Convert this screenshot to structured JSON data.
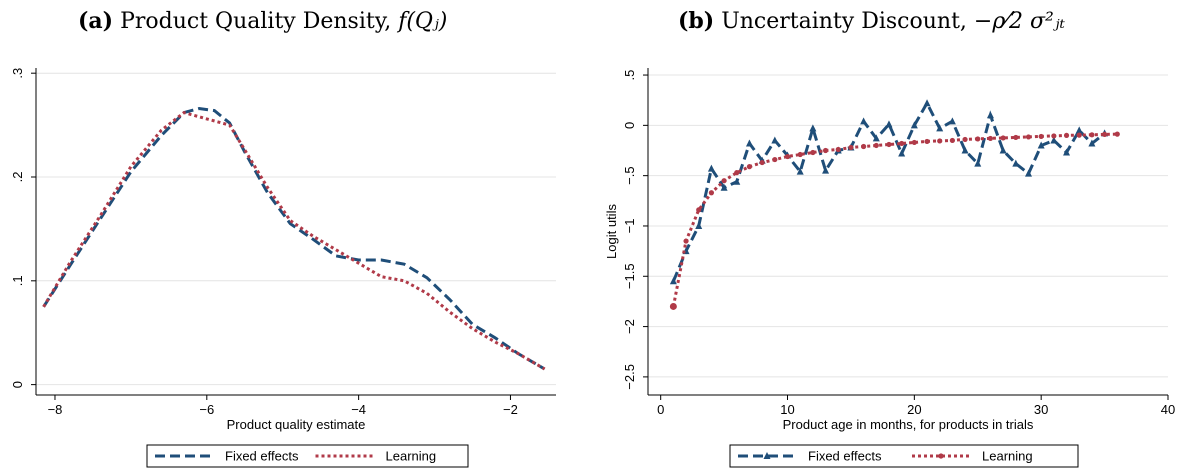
{
  "panels": [
    {
      "prefix": "(a)",
      "title": "Product Quality Density,",
      "math": "f(Qⱼ)"
    },
    {
      "prefix": "(b)",
      "title": "Uncertainty Discount,",
      "math": "−ρ⁄2 σ²ⱼₜ"
    }
  ],
  "colors": {
    "fixed": "#1f4e79",
    "learning": "#b03a48",
    "grid": "#e4e4e4"
  },
  "chart_data": [
    {
      "type": "line",
      "xlabel": "Product quality estimate",
      "ylabel": "",
      "xlim": [
        -8.25,
        -1.4
      ],
      "ylim": [
        -0.01,
        0.305
      ],
      "xticks": [
        -8,
        -6,
        -4,
        -2
      ],
      "xtick_labels": [
        "−8",
        "−6",
        "−4",
        "−2"
      ],
      "yticks": [
        0,
        0.1,
        0.2,
        0.3
      ],
      "ytick_labels": [
        "0",
        ".1",
        ".2",
        ".3"
      ],
      "grid": true,
      "legend": "bottom",
      "series": [
        {
          "name": "Fixed effects",
          "style": "dash",
          "x": [
            -8.15,
            -7.8,
            -7.4,
            -7.0,
            -6.6,
            -6.3,
            -6.1,
            -5.9,
            -5.7,
            -5.5,
            -5.2,
            -4.9,
            -4.6,
            -4.3,
            -4.0,
            -3.7,
            -3.4,
            -3.1,
            -2.8,
            -2.5,
            -2.2,
            -1.9,
            -1.55
          ],
          "y": [
            0.075,
            0.115,
            0.16,
            0.205,
            0.24,
            0.262,
            0.266,
            0.264,
            0.252,
            0.224,
            0.185,
            0.155,
            0.14,
            0.124,
            0.12,
            0.12,
            0.116,
            0.103,
            0.082,
            0.058,
            0.045,
            0.03,
            0.015
          ]
        },
        {
          "name": "Learning",
          "style": "dot",
          "x": [
            -8.15,
            -7.8,
            -7.4,
            -7.0,
            -6.6,
            -6.3,
            -6.0,
            -5.7,
            -5.5,
            -5.2,
            -4.9,
            -4.6,
            -4.3,
            -4.0,
            -3.7,
            -3.4,
            -3.1,
            -2.8,
            -2.5,
            -2.2,
            -1.9,
            -1.55
          ],
          "y": [
            0.075,
            0.118,
            0.163,
            0.21,
            0.245,
            0.262,
            0.256,
            0.25,
            0.226,
            0.19,
            0.158,
            0.143,
            0.13,
            0.117,
            0.104,
            0.1,
            0.088,
            0.07,
            0.054,
            0.041,
            0.03,
            0.015
          ]
        }
      ]
    },
    {
      "type": "line",
      "xlabel": "Product age in months, for products in trials",
      "ylabel": "Logit utils",
      "xlim": [
        -1,
        40
      ],
      "ylim": [
        -2.68,
        0.57
      ],
      "xticks": [
        0,
        10,
        20,
        30,
        40
      ],
      "xtick_labels": [
        "0",
        "10",
        "20",
        "30",
        "40"
      ],
      "yticks": [
        0.5,
        0,
        -0.5,
        -1,
        -1.5,
        -2,
        -2.5
      ],
      "ytick_labels": [
        ".5",
        "0",
        "−.5",
        "−1",
        "−1.5",
        "−2",
        "−2.5"
      ],
      "grid": true,
      "legend": "bottom",
      "series": [
        {
          "name": "Fixed effects",
          "style": "dash-triangle",
          "x": [
            1,
            2,
            3,
            4,
            5,
            6,
            7,
            8,
            9,
            10,
            11,
            12,
            13,
            14,
            15,
            16,
            17,
            18,
            19,
            20,
            21,
            22,
            23,
            24,
            25,
            26,
            27,
            28,
            29,
            30,
            31,
            32,
            33,
            34,
            35
          ],
          "y": [
            -1.55,
            -1.25,
            -1.0,
            -0.43,
            -0.62,
            -0.56,
            -0.18,
            -0.35,
            -0.15,
            -0.3,
            -0.46,
            -0.03,
            -0.45,
            -0.25,
            -0.22,
            0.04,
            -0.13,
            0.01,
            -0.28,
            0.0,
            0.22,
            -0.03,
            0.04,
            -0.25,
            -0.38,
            0.1,
            -0.25,
            -0.38,
            -0.48,
            -0.2,
            -0.15,
            -0.27,
            -0.05,
            -0.18,
            -0.08
          ]
        },
        {
          "name": "Learning",
          "style": "dot-circle",
          "x": [
            1,
            2,
            3,
            4,
            5,
            6,
            7,
            8,
            9,
            10,
            11,
            12,
            13,
            14,
            15,
            16,
            17,
            18,
            19,
            20,
            21,
            22,
            23,
            24,
            25,
            26,
            27,
            28,
            29,
            30,
            31,
            32,
            33,
            34,
            35,
            36
          ],
          "y": [
            -1.8,
            -1.15,
            -0.84,
            -0.67,
            -0.55,
            -0.47,
            -0.41,
            -0.37,
            -0.34,
            -0.31,
            -0.29,
            -0.27,
            -0.25,
            -0.24,
            -0.22,
            -0.21,
            -0.2,
            -0.19,
            -0.18,
            -0.17,
            -0.16,
            -0.155,
            -0.15,
            -0.14,
            -0.135,
            -0.13,
            -0.125,
            -0.12,
            -0.115,
            -0.11,
            -0.105,
            -0.1,
            -0.097,
            -0.094,
            -0.09,
            -0.087
          ]
        }
      ]
    }
  ]
}
